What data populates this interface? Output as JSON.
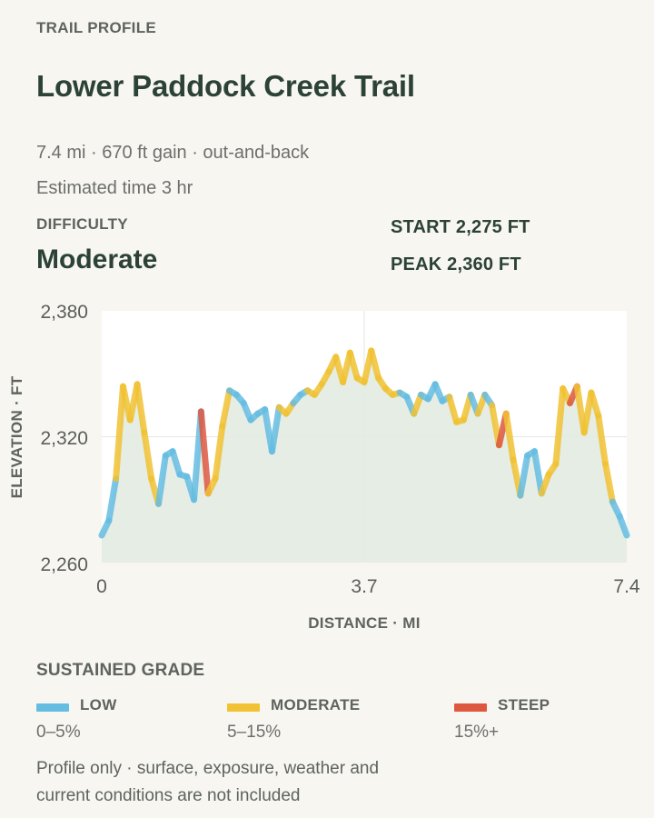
{
  "header": {
    "eyebrow": "TRAIL PROFILE",
    "title": "Lower Paddock Creek Trail",
    "meta": "7.4 mi · 670 ft gain · out-and-back",
    "estimated_time": "Estimated time 3 hr"
  },
  "difficulty": {
    "label": "DIFFICULTY",
    "value": "Moderate"
  },
  "stats": {
    "start": "START 2,275 FT",
    "peak": "PEAK 2,360 FT"
  },
  "colors": {
    "low": "#66bde2",
    "moderate": "#f1c233",
    "steep": "#de5840",
    "fill": "#e2ebe2",
    "grid": "#e6e6e0",
    "plot_bg": "#ffffff"
  },
  "chart_data": {
    "type": "line",
    "ylabel": "ELEVATION · FT",
    "xlabel": "DISTANCE · MI",
    "xlim": [
      0,
      7.4
    ],
    "ylim": [
      2260,
      2380
    ],
    "x_ticks": [
      "0",
      "3.7",
      "7.4"
    ],
    "y_ticks": [
      "2,380",
      "2,320",
      "2,260"
    ],
    "grid": true,
    "series": [
      {
        "x": [
          0,
          0.1,
          0.2,
          0.3,
          0.4,
          0.5,
          0.6,
          0.7,
          0.8,
          0.9,
          1.0,
          1.1,
          1.2,
          1.3,
          1.4,
          1.5,
          1.6,
          1.7,
          1.8,
          1.9,
          2.0,
          2.1,
          2.2,
          2.3,
          2.4,
          2.5,
          2.6,
          2.7,
          2.8,
          2.9,
          3.0,
          3.1,
          3.2,
          3.3,
          3.4,
          3.5,
          3.6,
          3.7,
          3.8,
          3.9,
          4.0,
          4.1,
          4.2,
          4.3,
          4.4,
          4.5,
          4.6,
          4.7,
          4.8,
          4.9,
          5.0,
          5.1,
          5.2,
          5.3,
          5.4,
          5.5,
          5.6,
          5.7,
          5.8,
          5.9,
          6.0,
          6.1,
          6.2,
          6.3,
          6.4,
          6.5,
          6.6,
          6.7,
          6.8,
          6.9,
          7.0,
          7.1,
          7.2,
          7.3,
          7.4
        ],
        "y": [
          2273,
          2280,
          2300,
          2344,
          2328,
          2345,
          2322,
          2300,
          2288,
          2311,
          2313,
          2302,
          2301,
          2290,
          2332,
          2293,
          2300,
          2325,
          2342,
          2340,
          2336,
          2328,
          2331,
          2333,
          2313,
          2334,
          2331,
          2336,
          2340,
          2342,
          2340,
          2345,
          2351,
          2358,
          2346,
          2360,
          2348,
          2346,
          2361,
          2348,
          2343,
          2340,
          2341,
          2339,
          2331,
          2340,
          2338,
          2345,
          2337,
          2339,
          2327,
          2328,
          2340,
          2331,
          2340,
          2335,
          2316,
          2331,
          2309,
          2292,
          2311,
          2313,
          2293,
          2302,
          2307,
          2343,
          2336,
          2344,
          2322,
          2341,
          2330,
          2307,
          2289,
          2282,
          2273
        ],
        "grade": [
          "low",
          "low",
          "moderate",
          "moderate",
          "moderate",
          "moderate",
          "moderate",
          "moderate",
          "low",
          "low",
          "low",
          "low",
          "low",
          "low",
          "steep",
          "moderate",
          "moderate",
          "moderate",
          "low",
          "low",
          "low",
          "low",
          "low",
          "low",
          "low",
          "moderate",
          "moderate",
          "low",
          "low",
          "moderate",
          "moderate",
          "moderate",
          "moderate",
          "moderate",
          "moderate",
          "moderate",
          "moderate",
          "moderate",
          "moderate",
          "moderate",
          "moderate",
          "moderate",
          "low",
          "low",
          "moderate",
          "low",
          "low",
          "low",
          "low",
          "moderate",
          "moderate",
          "moderate",
          "low",
          "moderate",
          "low",
          "moderate",
          "steep",
          "moderate",
          "moderate",
          "low",
          "low",
          "low",
          "moderate",
          "moderate",
          "moderate",
          "moderate",
          "steep",
          "moderate",
          "moderate",
          "moderate",
          "moderate",
          "moderate",
          "low",
          "low",
          "low"
        ]
      }
    ]
  },
  "legend": {
    "title": "SUSTAINED GRADE",
    "items": [
      {
        "name": "LOW",
        "range": "0–5%",
        "color": "#66bde2"
      },
      {
        "name": "MODERATE",
        "range": "5–15%",
        "color": "#f1c233"
      },
      {
        "name": "STEEP",
        "range": "15%+",
        "color": "#de5840"
      }
    ]
  },
  "footnote": "Profile only · surface, exposure, weather and current conditions are not included"
}
